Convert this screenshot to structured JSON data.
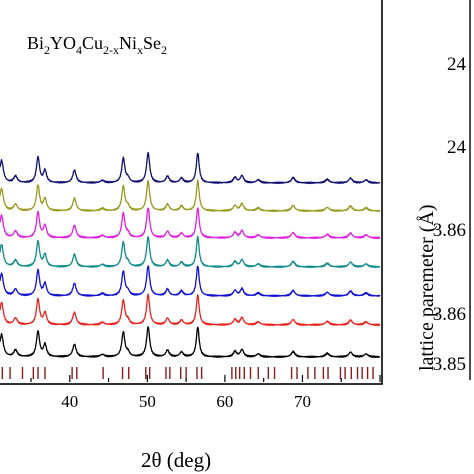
{
  "left_panel": {
    "formula": {
      "base": [
        "Bi",
        "YO",
        "Cu",
        "Ni",
        "Se"
      ],
      "subs": [
        "2",
        "4",
        "2-x",
        "x",
        "2"
      ]
    },
    "xlabel": "2θ (deg)",
    "xticks": [
      40,
      50,
      60,
      70
    ],
    "xlim": [
      31,
      80
    ]
  },
  "right_panel": {
    "ylabel": "lattice paremeter (Å)",
    "ytick_fragments": [
      "24",
      "24",
      "3.86",
      "3.86",
      "3.85"
    ]
  },
  "chart_data": {
    "type": "line",
    "xlabel": "2θ (deg)",
    "xlim": [
      31,
      80
    ],
    "peaks": [
      {
        "pos": 31.2,
        "h": 0.75,
        "w": 0.28
      },
      {
        "pos": 33.0,
        "h": 0.22,
        "w": 0.28
      },
      {
        "pos": 35.9,
        "h": 0.85,
        "w": 0.24
      },
      {
        "pos": 36.8,
        "h": 0.4,
        "w": 0.24
      },
      {
        "pos": 40.6,
        "h": 0.42,
        "w": 0.26
      },
      {
        "pos": 44.2,
        "h": 0.08,
        "w": 0.3
      },
      {
        "pos": 46.9,
        "h": 0.82,
        "w": 0.24
      },
      {
        "pos": 47.5,
        "h": 0.14,
        "w": 0.24
      },
      {
        "pos": 50.1,
        "h": 1.0,
        "w": 0.24
      },
      {
        "pos": 52.6,
        "h": 0.22,
        "w": 0.26
      },
      {
        "pos": 54.4,
        "h": 0.16,
        "w": 0.26
      },
      {
        "pos": 56.5,
        "h": 1.0,
        "w": 0.22
      },
      {
        "pos": 61.3,
        "h": 0.18,
        "w": 0.26
      },
      {
        "pos": 62.2,
        "h": 0.24,
        "w": 0.26
      },
      {
        "pos": 64.3,
        "h": 0.1,
        "w": 0.3
      },
      {
        "pos": 68.8,
        "h": 0.18,
        "w": 0.28
      },
      {
        "pos": 73.2,
        "h": 0.12,
        "w": 0.3
      },
      {
        "pos": 76.2,
        "h": 0.16,
        "w": 0.28
      },
      {
        "pos": 78.2,
        "h": 0.1,
        "w": 0.3
      }
    ],
    "series": [
      {
        "color": "#000000"
      },
      {
        "color": "#e8231e"
      },
      {
        "color": "#1010d0"
      },
      {
        "color": "#108a8a"
      },
      {
        "color": "#e020e0"
      },
      {
        "color": "#9a9a20"
      },
      {
        "color": "#101070"
      }
    ],
    "reference_ticks": {
      "color": "#8b1a1a",
      "positions": [
        31.3,
        32.3,
        33.9,
        35.3,
        35.9,
        36.8,
        40.3,
        40.9,
        44.3,
        46.8,
        47.6,
        49.8,
        50.3,
        52.4,
        52.9,
        54.3,
        55.0,
        56.4,
        57.0,
        60.9,
        61.4,
        61.9,
        62.5,
        63.3,
        64.3,
        65.6,
        66.4,
        68.6,
        69.3,
        70.7,
        71.6,
        72.7,
        73.3,
        74.9,
        75.5,
        76.3,
        77.1,
        77.7,
        78.4,
        79.1
      ]
    }
  }
}
